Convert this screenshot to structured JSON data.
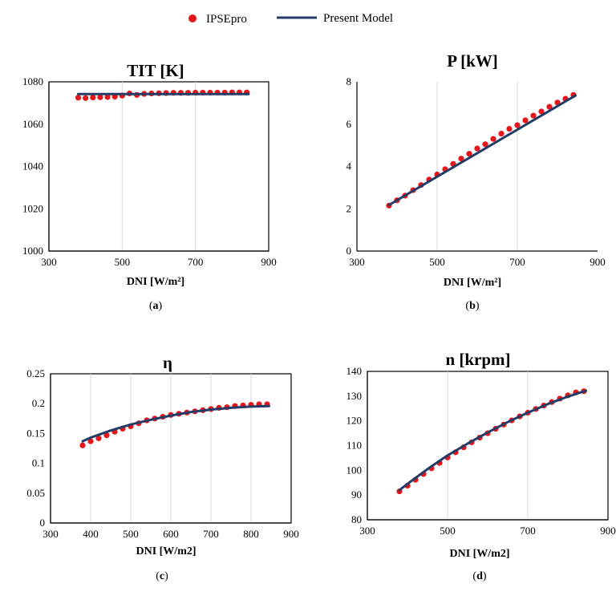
{
  "legend": {
    "items": [
      {
        "label": "IPSEpro",
        "color": "#e3171b"
      },
      {
        "label": "Present Model",
        "color": "#243d66"
      }
    ]
  },
  "colors": {
    "points": "#e3171b",
    "line": "#243d66",
    "grid": "#d9d9d9",
    "axis": "#000000"
  },
  "chart_data": [
    {
      "id": "a",
      "type": "scatter",
      "title": "TIT [K]",
      "xlabel": "DNI [W/m²]",
      "ylabel": "",
      "panel_label": "a",
      "xlim": [
        300,
        900
      ],
      "ylim": [
        1000,
        1080
      ],
      "xticks": [
        "300",
        "500",
        "700",
        "900"
      ],
      "yticks": [
        "1000",
        "1020",
        "1040",
        "1060",
        "1080"
      ],
      "grid": "x-only",
      "series": [
        {
          "name": "IPSEpro",
          "kind": "points",
          "x": [
            380,
            400,
            420,
            440,
            460,
            480,
            500,
            520,
            540,
            560,
            580,
            600,
            620,
            640,
            660,
            680,
            700,
            720,
            740,
            760,
            780,
            800,
            820,
            840
          ],
          "y": [
            1072.5,
            1072.3,
            1072.6,
            1072.7,
            1072.8,
            1073.0,
            1073.5,
            1074.5,
            1073.8,
            1074.3,
            1074.5,
            1074.6,
            1074.7,
            1074.8,
            1074.8,
            1074.8,
            1074.9,
            1074.9,
            1074.9,
            1074.9,
            1074.9,
            1075.0,
            1075.0,
            1075.0
          ]
        },
        {
          "name": "Present Model",
          "kind": "line",
          "x": [
            380,
            845
          ],
          "y": [
            1074.2,
            1074.2
          ]
        }
      ]
    },
    {
      "id": "b",
      "type": "scatter",
      "title": "P [kW]",
      "xlabel": "DNI [W/m²]",
      "ylabel": "",
      "panel_label": "b",
      "xlim": [
        300,
        900
      ],
      "ylim": [
        0,
        8
      ],
      "xticks": [
        "300",
        "500",
        "700",
        "900"
      ],
      "yticks": [
        "0",
        "2",
        "4",
        "6",
        "8"
      ],
      "grid": "x-only",
      "series": [
        {
          "name": "IPSEpro",
          "kind": "points",
          "x": [
            380,
            400,
            420,
            440,
            460,
            480,
            500,
            520,
            540,
            560,
            580,
            600,
            620,
            640,
            660,
            680,
            700,
            720,
            740,
            760,
            780,
            800,
            820,
            840
          ],
          "y": [
            2.15,
            2.4,
            2.62,
            2.88,
            3.12,
            3.38,
            3.62,
            3.87,
            4.12,
            4.37,
            4.6,
            4.85,
            5.05,
            5.3,
            5.55,
            5.78,
            5.95,
            6.18,
            6.4,
            6.6,
            6.82,
            7.02,
            7.2,
            7.38
          ]
        },
        {
          "name": "Present Model",
          "kind": "line",
          "x": [
            380,
            845
          ],
          "y": [
            2.18,
            7.35
          ]
        }
      ]
    },
    {
      "id": "c",
      "type": "scatter",
      "title": "η",
      "xlabel": "DNI [W/m2]",
      "ylabel": "",
      "panel_label": "c",
      "xlim": [
        300,
        900
      ],
      "ylim": [
        0,
        0.25
      ],
      "xticks": [
        "300",
        "400",
        "500",
        "600",
        "700",
        "800",
        "900"
      ],
      "yticks": [
        "0",
        "0.05",
        "0.1",
        "0.15",
        "0.2",
        "0.25"
      ],
      "grid": "x-only",
      "series": [
        {
          "name": "IPSEpro",
          "kind": "points",
          "x": [
            380,
            400,
            420,
            440,
            460,
            480,
            500,
            520,
            540,
            560,
            580,
            600,
            620,
            640,
            660,
            680,
            700,
            720,
            740,
            760,
            780,
            800,
            820,
            840
          ],
          "y": [
            0.13,
            0.137,
            0.142,
            0.147,
            0.153,
            0.158,
            0.162,
            0.167,
            0.172,
            0.175,
            0.178,
            0.181,
            0.183,
            0.185,
            0.187,
            0.189,
            0.191,
            0.193,
            0.194,
            0.196,
            0.197,
            0.198,
            0.199,
            0.199
          ]
        },
        {
          "name": "Present Model",
          "kind": "line",
          "x": [
            380,
            400,
            450,
            500,
            550,
            600,
            650,
            700,
            750,
            800,
            845
          ],
          "y": [
            0.137,
            0.143,
            0.155,
            0.165,
            0.173,
            0.18,
            0.186,
            0.19,
            0.193,
            0.195,
            0.196
          ]
        }
      ]
    },
    {
      "id": "d",
      "type": "scatter",
      "title": "n [krpm]",
      "xlabel": "DNI [W/m2]",
      "ylabel": "",
      "panel_label": "d",
      "xlim": [
        300,
        900
      ],
      "ylim": [
        80,
        140
      ],
      "xticks": [
        "300",
        "500",
        "700",
        "900"
      ],
      "yticks": [
        "80",
        "90",
        "100",
        "110",
        "120",
        "130",
        "140"
      ],
      "grid": "x-only",
      "series": [
        {
          "name": "IPSEpro",
          "kind": "points",
          "x": [
            380,
            400,
            420,
            440,
            460,
            480,
            500,
            520,
            540,
            560,
            580,
            600,
            620,
            640,
            660,
            680,
            700,
            720,
            740,
            760,
            780,
            800,
            820,
            840
          ],
          "y": [
            91.5,
            93.8,
            96.2,
            98.5,
            100.8,
            103.0,
            105.2,
            107.3,
            109.3,
            111.3,
            113.2,
            115.0,
            116.8,
            118.5,
            120.2,
            121.8,
            123.3,
            124.8,
            126.2,
            127.6,
            129.0,
            130.3,
            131.5,
            132.0
          ]
        },
        {
          "name": "Present Model",
          "kind": "line",
          "x": [
            380,
            400,
            450,
            500,
            550,
            600,
            650,
            700,
            750,
            800,
            845
          ],
          "y": [
            92.0,
            94.5,
            100.5,
            106.0,
            110.8,
            115.3,
            119.5,
            123.3,
            126.8,
            129.8,
            132.2
          ]
        }
      ]
    }
  ]
}
